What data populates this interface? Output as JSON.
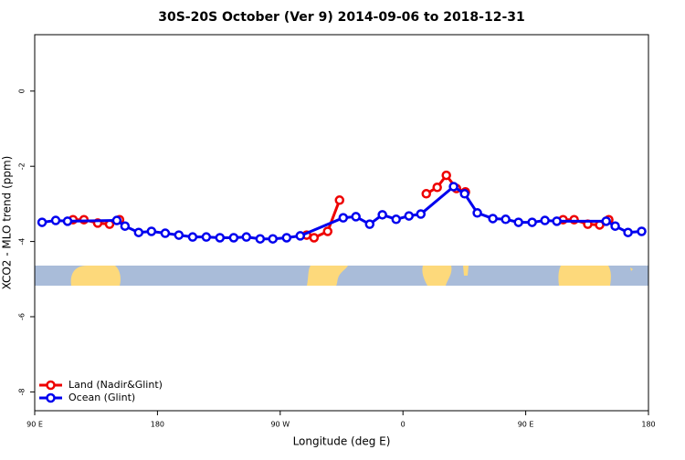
{
  "chart_data": {
    "type": "line",
    "title": "30S-20S October (Ver 9)   2014-09-06 to 2018-12-31",
    "x_label": "Longitude (deg E)",
    "y_label": "XCO2 - MLO trend (ppm)",
    "xlim": [
      90,
      540
    ],
    "ylim": [
      -8.5,
      1.5
    ],
    "xticks": [
      {
        "value": 90,
        "label": "90 E"
      },
      180,
      {
        "value": 270,
        "label": "90 W"
      },
      {
        "value": 360,
        "label": "0"
      },
      {
        "value": 450,
        "label": "90 E"
      },
      {
        "value": 540,
        "label": "180"
      }
    ],
    "yticks": [
      0,
      -2,
      -4,
      -6,
      -8
    ],
    "legend": "bottom-left",
    "series": [
      {
        "name": "Land (Nadir&Glint)",
        "color": "#ee0000",
        "x": [
          118.1,
          126.1,
          136.2,
          144.9,
          152.2,
          null,
          289.4,
          294.8,
          304.8,
          313.5,
          null,
          377.1,
          385.1,
          391.8,
          399.2,
          405.8,
          null,
          477.4,
          485.5,
          495.5,
          504.2,
          510.9
        ],
        "values": [
          -3.42,
          -3.42,
          -3.51,
          -3.54,
          -3.42,
          null,
          -3.83,
          -3.9,
          -3.73,
          -2.9,
          null,
          -2.73,
          -2.56,
          -2.24,
          -2.59,
          -2.68,
          null,
          -3.42,
          -3.42,
          -3.54,
          -3.56,
          -3.42
        ]
      },
      {
        "name": "Ocean (Glint)",
        "color": "#0000ee",
        "x": [
          95.4,
          105.4,
          114.1,
          150.2,
          156.2,
          166.2,
          175.6,
          185.7,
          195.7,
          205.8,
          215.8,
          225.8,
          235.9,
          245.2,
          255.3,
          264.6,
          274.7,
          284.7,
          316.2,
          325.5,
          335.6,
          344.9,
          355.0,
          364.4,
          373.1,
          397.1,
          405.2,
          414.5,
          425.9,
          435.3,
          444.7,
          454.7,
          464.1,
          472.8,
          509.0,
          515.6,
          525.0,
          535.0
        ],
        "values": [
          -3.49,
          -3.44,
          -3.46,
          -3.44,
          -3.59,
          -3.76,
          -3.73,
          -3.78,
          -3.83,
          -3.88,
          -3.88,
          -3.9,
          -3.9,
          -3.88,
          -3.93,
          -3.93,
          -3.9,
          -3.85,
          -3.37,
          -3.34,
          -3.54,
          -3.29,
          -3.41,
          -3.32,
          -3.27,
          -2.54,
          -2.73,
          -3.24,
          -3.39,
          -3.41,
          -3.49,
          -3.49,
          -3.44,
          -3.46,
          -3.46,
          -3.59,
          -3.76,
          -3.73
        ]
      }
    ]
  }
}
